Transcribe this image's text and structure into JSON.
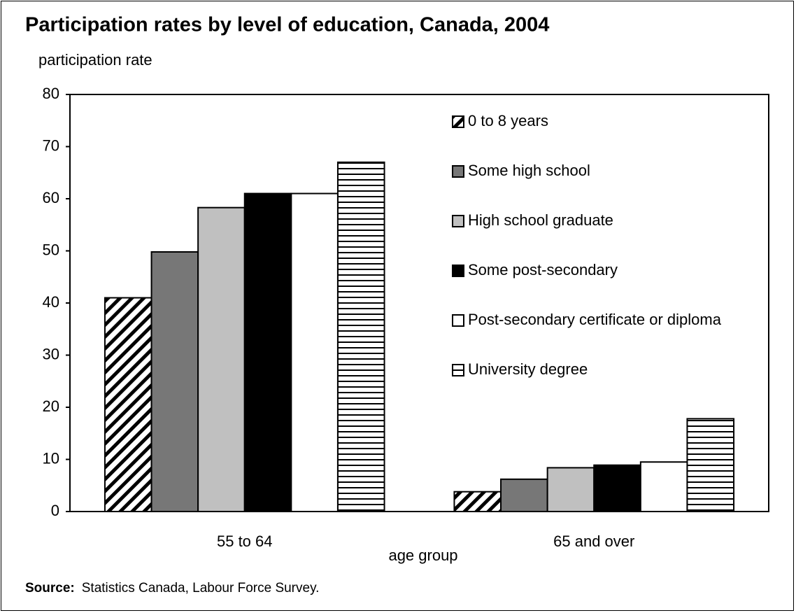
{
  "chart_data": {
    "type": "bar",
    "title": "Participation rates by level of education, Canada, 2004",
    "y_label": "participation rate",
    "x_label": "age group",
    "categories": [
      "55 to 64",
      "65 and over"
    ],
    "series": [
      {
        "name": "0 to 8 years",
        "color": "#000000",
        "pattern": "diagonal-hatch",
        "values": [
          41,
          3.8
        ]
      },
      {
        "name": "Some high school",
        "color": "#777777",
        "values": [
          49.8,
          6.2
        ]
      },
      {
        "name": "High school graduate",
        "color": "#c0c0c0",
        "values": [
          58.3,
          8.4
        ]
      },
      {
        "name": "Some post-secondary",
        "color": "#000000",
        "values": [
          61,
          8.9
        ]
      },
      {
        "name": "Post-secondary certificate or diploma",
        "color": "#ffffff",
        "values": [
          61,
          9.5
        ]
      },
      {
        "name": "University degree",
        "color": "#000000",
        "pattern": "horizontal-stripes",
        "values": [
          67,
          17.8
        ]
      }
    ],
    "ylim": [
      0,
      80
    ],
    "yticks": [
      0,
      10,
      20,
      30,
      40,
      50,
      60,
      70,
      80
    ],
    "legend": "upper right",
    "source_label": "Source:",
    "source_text": "Statistics Canada, Labour Force Survey."
  }
}
